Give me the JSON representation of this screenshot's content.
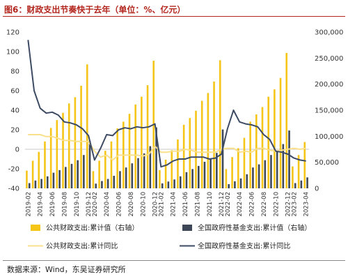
{
  "header": {
    "title": "图6：财政支出节奏快于去年（单位：%、亿元）"
  },
  "footer": {
    "source": "数据来源：Wind，东吴证券研究所"
  },
  "colors": {
    "gold_bar": "#F5C518",
    "dark_bar": "#3D4757",
    "gold_line": "#FBE08C",
    "dark_line": "#3D4A63"
  },
  "chart_data": {
    "type": "bar",
    "categories": [
      "2019-02",
      "2019-03",
      "2019-04",
      "2019-05",
      "2019-06",
      "2019-07",
      "2019-08",
      "2019-09",
      "2019-10",
      "2019-11",
      "2019-12",
      "2020-02",
      "2020-03",
      "2020-04",
      "2020-05",
      "2020-06",
      "2020-07",
      "2020-08",
      "2020-09",
      "2020-10",
      "2020-11",
      "2020-12",
      "2021-02",
      "2021-03",
      "2021-04",
      "2021-05",
      "2021-06",
      "2021-07",
      "2021-08",
      "2021-09",
      "2021-10",
      "2021-11",
      "2021-12",
      "2022-02",
      "2022-03",
      "2022-04",
      "2022-05",
      "2022-06",
      "2022-07",
      "2022-08",
      "2022-09",
      "2022-10",
      "2022-11",
      "2022-12",
      "2023-02",
      "2023-03",
      "2023-04"
    ],
    "xtick_labels": [
      "2019-02",
      "2019-04",
      "2019-06",
      "2019-08",
      "2019-10",
      "2019-12",
      "2020-02",
      "2020-04",
      "2020-06",
      "2020-08",
      "2020-10",
      "2020-12",
      "2021-02",
      "2021-04",
      "2021-06",
      "2021-08",
      "2021-10",
      "2021-12",
      "2022-02",
      "2022-04",
      "2022-06",
      "2022-08",
      "2022-10",
      "2022-12",
      "2023-02",
      "2023-04"
    ],
    "y_left": {
      "ylim": [
        -40,
        120
      ],
      "ticks": [
        -40,
        -20,
        0,
        20,
        40,
        60,
        80,
        100,
        120
      ]
    },
    "y_right": {
      "ylim": [
        0,
        300000
      ],
      "ticks": [
        "0",
        "50,000",
        "100,000",
        "150,000",
        "200,000",
        "250,000",
        "300,000"
      ],
      "tick_values": [
        0,
        50000,
        100000,
        150000,
        200000,
        250000,
        300000
      ]
    },
    "series": [
      {
        "name": "公共财政支出:累计值（右轴）",
        "type": "bar",
        "axis": "right",
        "color": "#F5C518",
        "values": [
          34000,
          53000,
          70000,
          90000,
          116000,
          131000,
          145000,
          163000,
          175000,
          197000,
          238000,
          33000,
          53000,
          72000,
          90000,
          115000,
          128000,
          143000,
          161000,
          176000,
          198000,
          245000,
          35000,
          55000,
          73000,
          94000,
          122000,
          135000,
          149000,
          168000,
          183000,
          205000,
          246000,
          37000,
          60000,
          77000,
          97000,
          128000,
          142000,
          156000,
          176000,
          190000,
          212000,
          260000,
          42000,
          64000,
          89000
        ]
      },
      {
        "name": "全国政府性基金支出:累计值（右轴）",
        "type": "bar",
        "axis": "right",
        "color": "#3D4757",
        "values": [
          10000,
          15000,
          18000,
          23000,
          30000,
          35000,
          41000,
          47000,
          54000,
          64000,
          91000,
          9000,
          14000,
          18000,
          24000,
          33000,
          40000,
          48000,
          58000,
          67000,
          81000,
          117000,
          9500,
          13000,
          17000,
          23000,
          31000,
          37000,
          43000,
          51000,
          57000,
          68000,
          113000,
          8000,
          13500,
          19000,
          27000,
          40000,
          46000,
          54000,
          64000,
          73000,
          85000,
          111000,
          10000,
          15000,
          21000
        ]
      },
      {
        "name": "公共财政支出:累计同比",
        "type": "line",
        "axis": "left",
        "color": "#FBE08C",
        "values": [
          15,
          15,
          15,
          13,
          13,
          11,
          9,
          9,
          8,
          8,
          8,
          -2,
          -8,
          -6,
          -11,
          -6,
          -6,
          -6,
          -6,
          -7,
          -5,
          3,
          -3,
          -3,
          -2,
          -2,
          0,
          -1,
          -3,
          -3,
          -3,
          -3,
          0,
          1,
          1,
          -3,
          -2,
          -3,
          1,
          1,
          -1,
          -2,
          -1,
          0,
          1,
          0,
          1
        ]
      },
      {
        "name": "全国政府性基金支出:累计同比",
        "type": "line",
        "axis": "left",
        "color": "#3D4A63",
        "values": [
          112,
          60,
          42,
          37,
          38,
          35,
          28,
          27,
          25,
          21,
          14,
          -11,
          1,
          15,
          14,
          20,
          22,
          21,
          23,
          22,
          23,
          26,
          -18,
          -16,
          -12,
          -10,
          -10,
          -8,
          -8,
          -8,
          -10,
          -9,
          -5,
          21,
          40,
          28,
          26,
          25,
          23,
          15,
          10,
          -2,
          -3,
          -5,
          -9,
          -11,
          -12
        ]
      }
    ]
  }
}
